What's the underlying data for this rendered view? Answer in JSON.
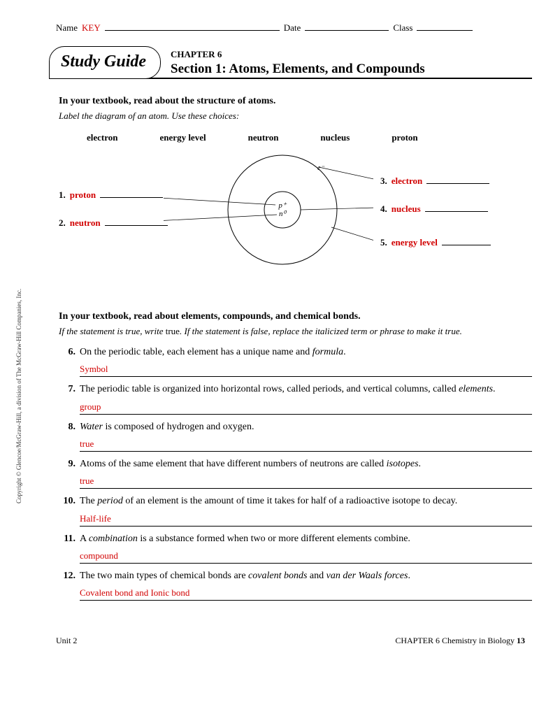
{
  "header": {
    "name_label": "Name",
    "key": "KEY",
    "date_label": "Date",
    "class_label": "Class"
  },
  "banner": {
    "badge": "Study Guide",
    "chapter": "CHAPTER 6",
    "section": "Section 1: Atoms, Elements, and Compounds"
  },
  "part1": {
    "heading": "In your textbook, read about the structure of atoms.",
    "instruction": "Label the diagram of an atom. Use these choices:",
    "choices": [
      "electron",
      "energy level",
      "neutron",
      "nucleus",
      "proton"
    ],
    "labels": [
      {
        "num": "1.",
        "ans": "proton"
      },
      {
        "num": "2.",
        "ans": "neutron"
      },
      {
        "num": "3.",
        "ans": "electron"
      },
      {
        "num": "4.",
        "ans": "nucleus"
      },
      {
        "num": "5.",
        "ans": "energy level"
      }
    ],
    "nucleus_top": "p⁺",
    "nucleus_bot": "n⁰",
    "electron_symbol": "e⁻"
  },
  "part2": {
    "heading": "In your textbook, read about elements, compounds, and chemical bonds.",
    "instruction_a": "If the statement is true, write ",
    "instruction_true": "true",
    "instruction_b": ". If the statement is false, replace the italicized term or phrase to make it true.",
    "questions": [
      {
        "num": "6.",
        "pre": "On the periodic table, each element has a unique name and ",
        "ital": "formula",
        "post": ".",
        "answer": "Symbol"
      },
      {
        "num": "7.",
        "pre": "The periodic table is organized into horizontal rows, called periods, and vertical columns, called ",
        "ital": "elements",
        "post": ".",
        "answer": "group"
      },
      {
        "num": "8.",
        "pre": "",
        "ital": "Water",
        "post": " is composed of hydrogen and oxygen.",
        "answer": "true"
      },
      {
        "num": "9.",
        "pre": "Atoms of the same element that have different numbers of neutrons are called ",
        "ital": "isotopes",
        "post": ".",
        "answer": "true"
      },
      {
        "num": "10.",
        "pre": "The ",
        "ital": "period",
        "post": " of an element is the amount of time it takes for half of a radioactive isotope to decay.",
        "answer": "Half-life"
      },
      {
        "num": "11.",
        "pre": "A ",
        "ital": "combination",
        "post": " is a substance formed when two or more different elements combine.",
        "answer": "compound"
      },
      {
        "num": "12.",
        "pre": "The two main types of chemical bonds are ",
        "ital": "covalent bonds",
        "post": " and ",
        "ital2": "van der Waals forces",
        "post2": ".",
        "answer": "Covalent bond and Ionic bond"
      }
    ]
  },
  "footer": {
    "left": "Unit 2",
    "right_a": "CHAPTER 6 Chemistry in Biology ",
    "right_pg": "13"
  },
  "copyright": "Copyright © Glencoe/McGraw-Hill, a division of The McGraw-Hill Companies, Inc.",
  "colors": {
    "red": "#d10000",
    "text": "#000000",
    "bg": "#ffffff"
  }
}
